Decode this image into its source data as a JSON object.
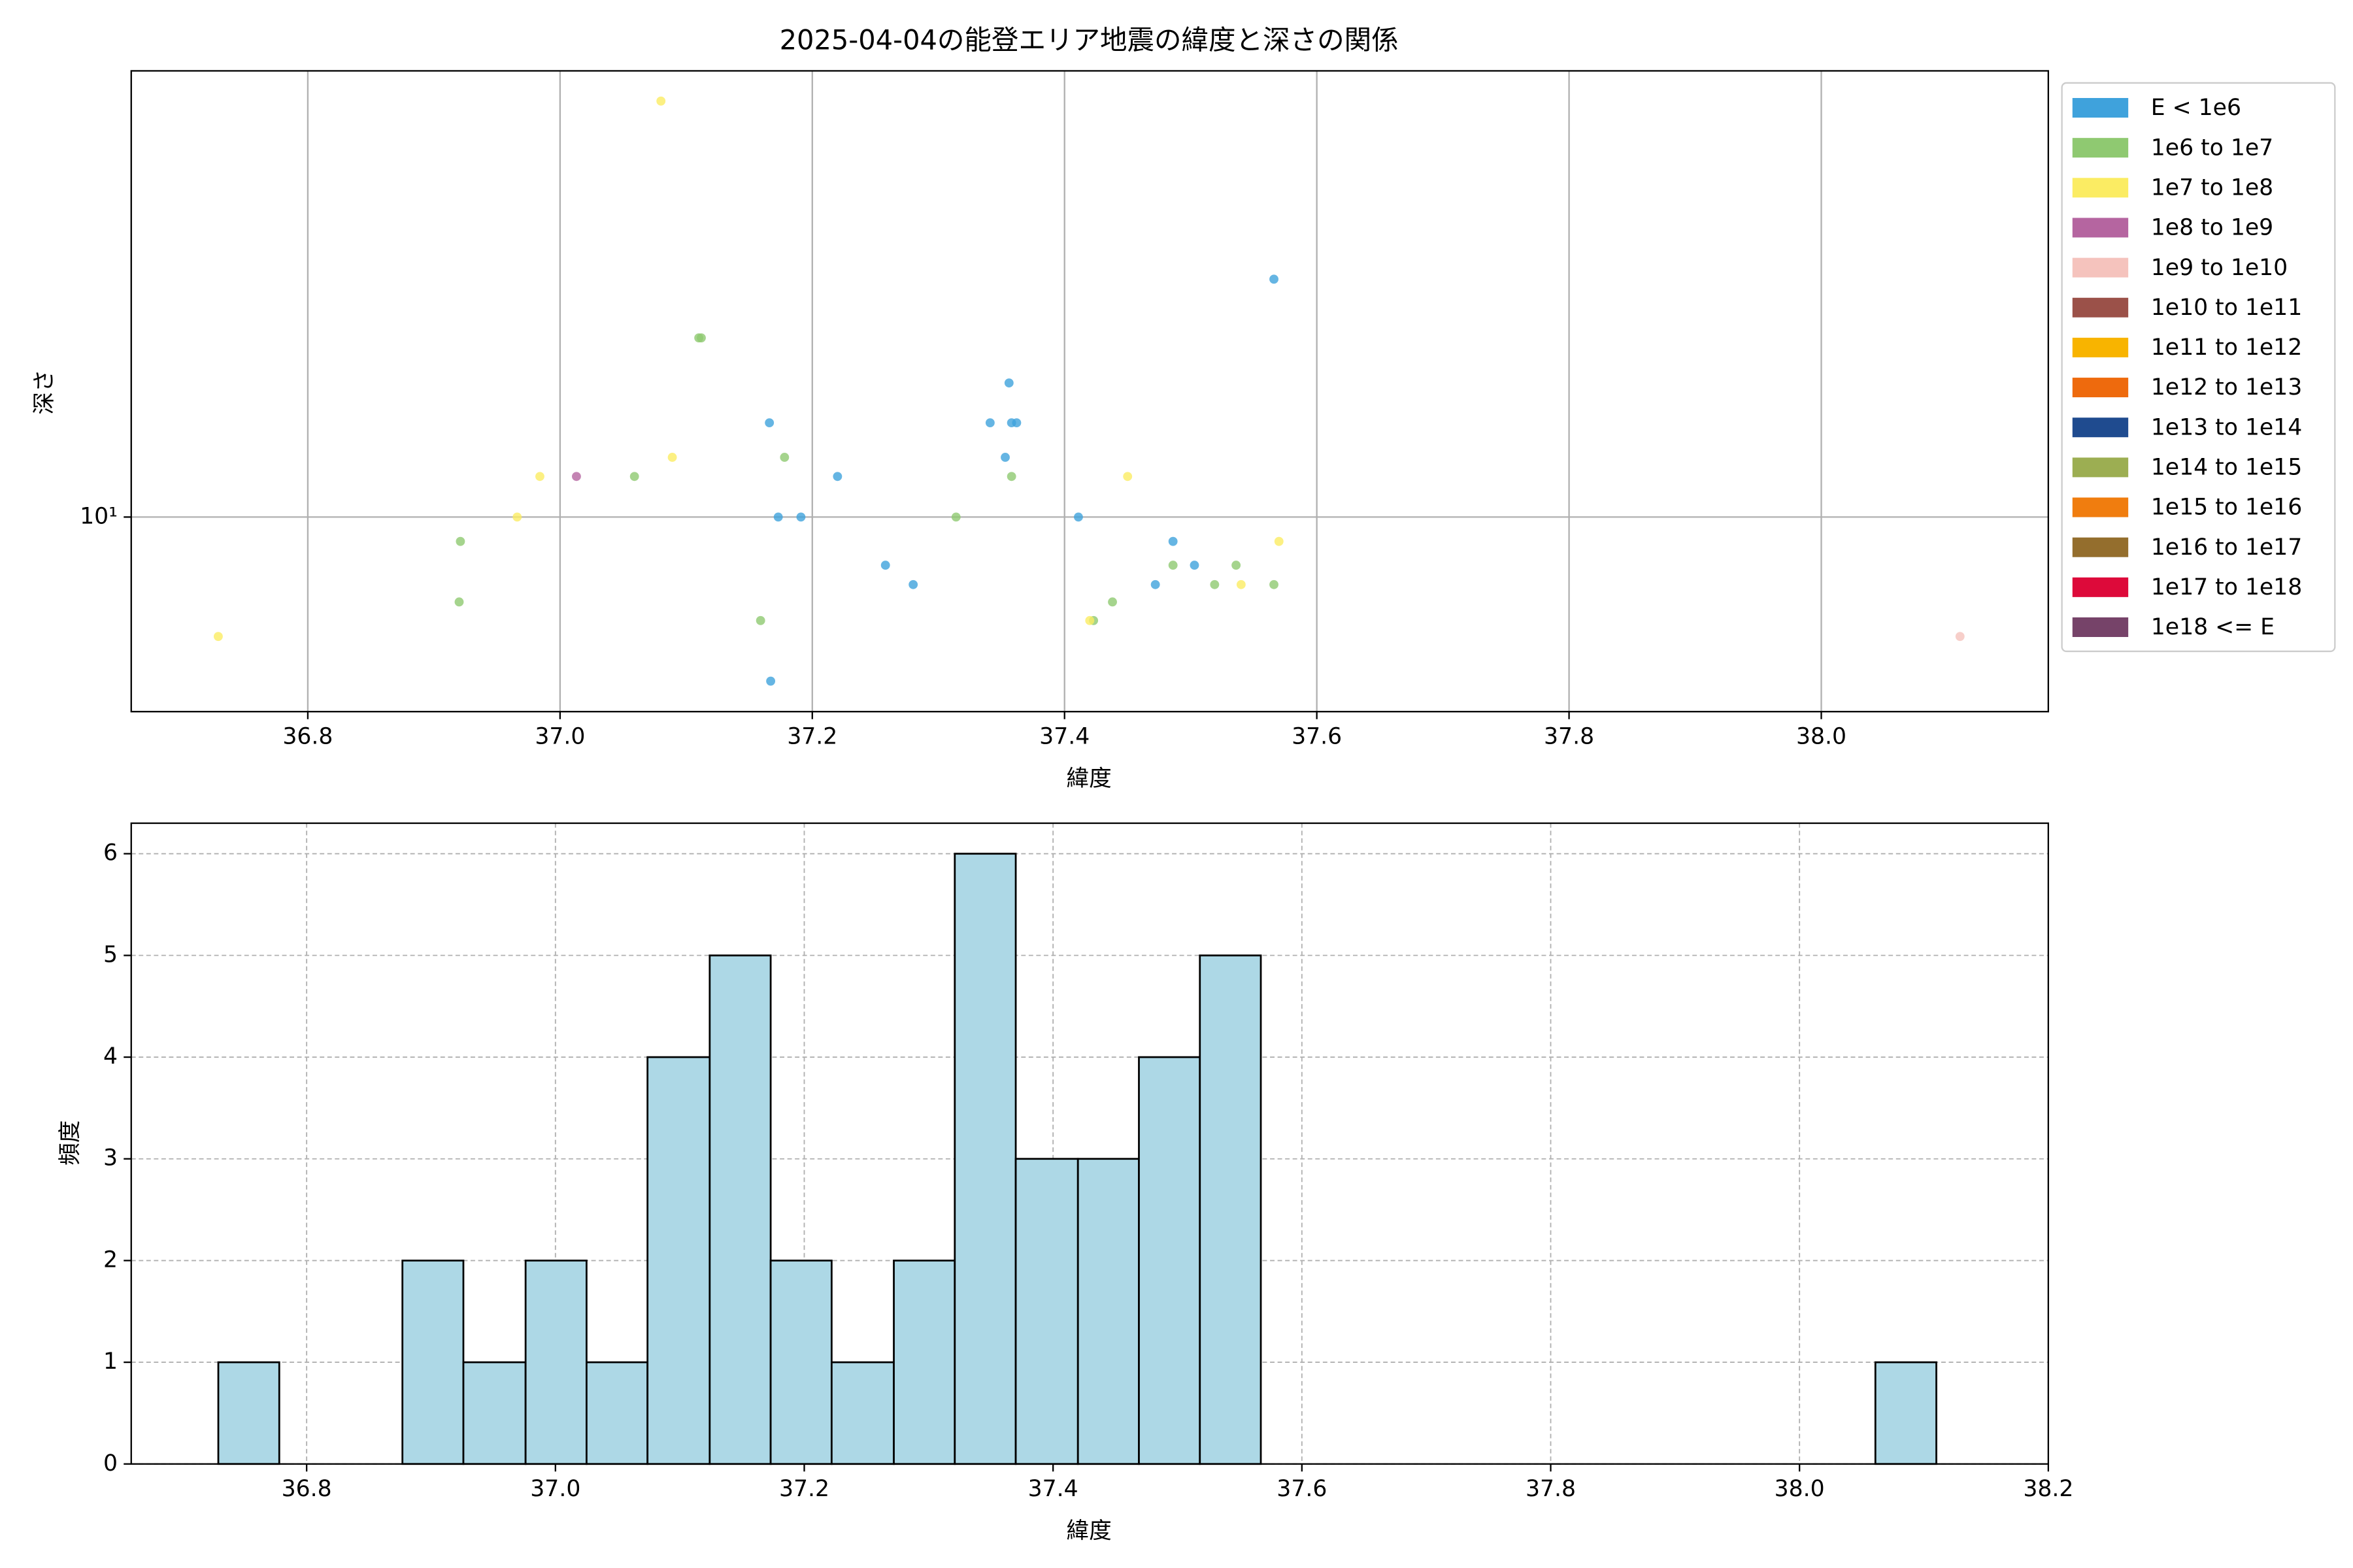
{
  "chart_data": [
    {
      "type": "scatter",
      "title": "2025-04-04の能登エリア地震の緯度と深さの関係",
      "x_label": "緯度",
      "y_label": "深さ",
      "xlim": [
        36.66,
        38.18
      ],
      "ylim": [
        4.71,
        56.2
      ],
      "yscale": "log",
      "xticks": [
        36.8,
        {
          "value": 37,
          "label": "37.0"
        },
        37.2,
        37.4,
        37.6,
        37.8,
        {
          "value": 38,
          "label": "38.0"
        }
      ],
      "yticks": [
        {
          "value": 10,
          "label": "10¹"
        }
      ],
      "grid": true,
      "grid_style": "solid",
      "legend": "outside-right",
      "series": [
        {
          "name": "E < 1e6",
          "color": "#3fa2dc",
          "x": [
            37.566,
            37.356,
            37.166,
            37.341,
            37.358,
            37.362,
            37.353,
            37.22,
            37.173,
            37.191,
            37.411,
            37.486,
            37.258,
            37.503,
            37.28,
            37.472,
            37.167
          ],
          "values": [
            25.1,
            16.8,
            14.4,
            14.4,
            14.4,
            14.4,
            12.6,
            11.7,
            10,
            10,
            10,
            9.1,
            8.3,
            8.3,
            7.7,
            7.7,
            5.3
          ]
        },
        {
          "name": "1e6 to 1e7",
          "color": "#8fc971",
          "x": [
            37.11,
            37.112,
            37.178,
            37.059,
            37.358,
            37.314,
            36.921,
            37.486,
            37.536,
            37.519,
            37.566,
            36.92,
            37.438,
            37.159,
            37.423
          ],
          "values": [
            20,
            20,
            12.6,
            11.7,
            11.7,
            10,
            9.1,
            8.3,
            8.3,
            7.7,
            7.7,
            7.2,
            7.2,
            6.7,
            6.7
          ]
        },
        {
          "name": "1e7 to 1e8",
          "color": "#fbec63",
          "x": [
            37.08,
            37.089,
            36.984,
            37.45,
            36.966,
            37.57,
            37.54,
            37.42,
            36.729
          ],
          "values": [
            50,
            12.6,
            11.7,
            11.7,
            10,
            9.1,
            7.7,
            6.7,
            6.3
          ]
        },
        {
          "name": "1e8 to 1e9",
          "color": "#b565a0",
          "x": [
            37.013
          ],
          "values": [
            11.7
          ]
        },
        {
          "name": "1e9 to 1e10",
          "color": "#f5c3bd",
          "x": [
            38.11
          ],
          "values": [
            6.3
          ]
        },
        {
          "name": "1e10 to 1e11",
          "color": "#9b5149",
          "x": [],
          "values": []
        },
        {
          "name": "1e11 to 1e12",
          "color": "#f8b400",
          "x": [],
          "values": []
        },
        {
          "name": "1e12 to 1e13",
          "color": "#ee6a0d",
          "x": [],
          "values": []
        },
        {
          "name": "1e13 to 1e14",
          "color": "#1f4b8f",
          "x": [],
          "values": []
        },
        {
          "name": "1e14 to 1e15",
          "color": "#9cae52",
          "x": [],
          "values": []
        },
        {
          "name": "1e15 to 1e16",
          "color": "#f07d0f",
          "x": [],
          "values": []
        },
        {
          "name": "1e16 to 1e17",
          "color": "#946e2d",
          "x": [],
          "values": []
        },
        {
          "name": "1e17 to 1e18",
          "color": "#dd0a3a",
          "x": [],
          "values": []
        },
        {
          "name": "1e18 <= E",
          "color": "#764369",
          "x": [],
          "values": []
        }
      ]
    },
    {
      "type": "histogram",
      "x_label": "緯度",
      "y_label": "頻度",
      "color": "#add8e6",
      "edgecolor": "#000000",
      "xlim": [
        36.659,
        38.2
      ],
      "ylim": [
        0,
        6.3
      ],
      "xticks": [
        36.8,
        {
          "value": 37,
          "label": "37.0"
        },
        37.2,
        37.4,
        37.6,
        37.8,
        {
          "value": 38,
          "label": "38.0"
        },
        38.2
      ],
      "yticks": [
        0,
        1,
        2,
        3,
        4,
        5,
        6
      ],
      "grid": true,
      "grid_style": "dashed",
      "bins": [
        36.729,
        36.778,
        36.828,
        36.877,
        36.926,
        36.976,
        37.025,
        37.074,
        37.124,
        37.173,
        37.222,
        37.272,
        37.321,
        37.37,
        37.42,
        37.469,
        37.518,
        37.567,
        37.617,
        37.666,
        37.715,
        37.765,
        37.814,
        37.863,
        37.913,
        37.962,
        38.011,
        38.061,
        38.11
      ],
      "values": [
        1,
        0,
        0,
        2,
        1,
        2,
        1,
        4,
        5,
        2,
        1,
        2,
        6,
        3,
        3,
        4,
        5,
        0,
        0,
        0,
        0,
        0,
        0,
        0,
        0,
        0,
        0,
        1
      ]
    }
  ]
}
